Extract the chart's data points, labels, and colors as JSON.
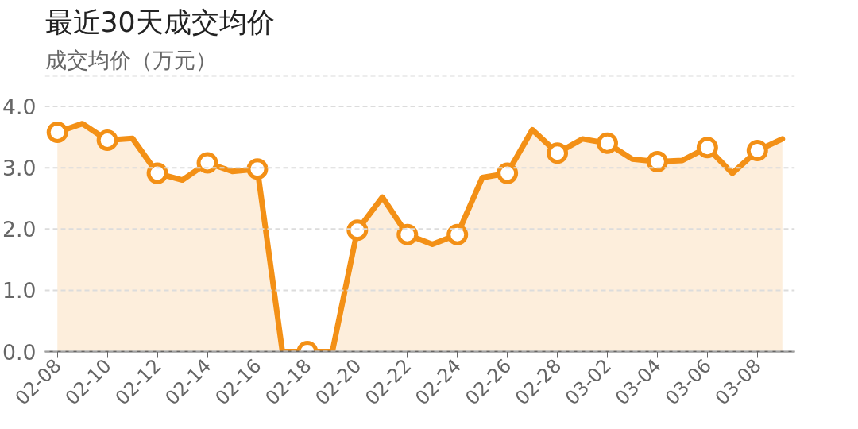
{
  "chart_data": {
    "type": "area",
    "title": "最近30天成交均价",
    "ylabel": "成交均价（万元）",
    "categories": [
      "02-08",
      null,
      "02-10",
      null,
      "02-12",
      null,
      "02-14",
      null,
      "02-16",
      null,
      "02-18",
      null,
      "02-20",
      null,
      "02-22",
      null,
      "02-24",
      null,
      "02-26",
      null,
      "02-28",
      null,
      "03-02",
      null,
      "03-04",
      null,
      "03-06",
      null,
      "03-08",
      null
    ],
    "series": [
      {
        "color": "#f39016",
        "values": [
          3.58,
          3.72,
          3.45,
          3.48,
          2.91,
          2.8,
          3.08,
          2.94,
          2.98,
          0.0,
          0.0,
          0.0,
          1.98,
          2.52,
          1.91,
          1.75,
          1.91,
          2.84,
          2.91,
          3.62,
          3.24,
          3.47,
          3.4,
          3.14,
          3.1,
          3.12,
          3.33,
          2.91,
          3.28,
          3.47
        ]
      }
    ],
    "ylim": [
      0,
      4.5
    ],
    "yticks": [
      {
        "value": 0,
        "label": "0.0"
      },
      {
        "value": 1,
        "label": "1.0"
      },
      {
        "value": 2,
        "label": "2.0"
      },
      {
        "value": 3,
        "label": "3.0"
      },
      {
        "value": 4,
        "label": "4.0"
      },
      {
        "value": 4.5,
        "label": null
      }
    ],
    "grid": "y",
    "marker": "circle"
  }
}
